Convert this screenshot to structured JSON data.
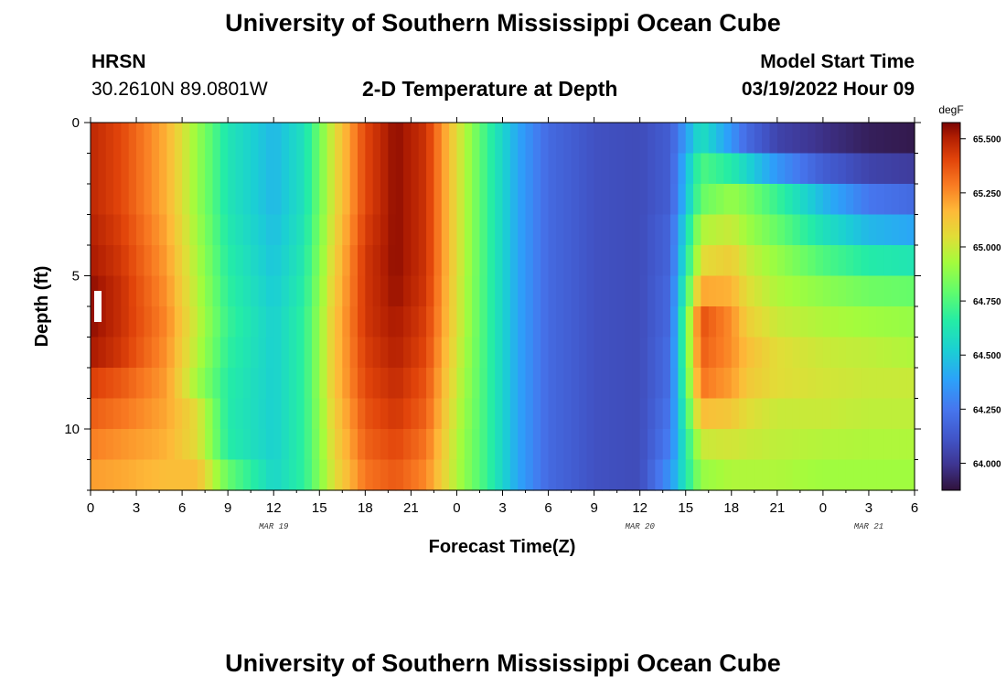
{
  "page": {
    "title": "University of Southern Mississippi Ocean Cube",
    "footer_title": "University of Southern Mississippi Ocean Cube"
  },
  "header": {
    "station": "HRSN",
    "coords": "30.2610N  89.0801W",
    "subtitle": "2-D Temperature at Depth",
    "model_label": "Model Start Time",
    "model_time": "03/19/2022 Hour 09"
  },
  "chart_data": {
    "type": "heatmap",
    "title": "2-D Temperature at Depth",
    "xlabel": "Forecast Time(Z)",
    "ylabel": "Depth (ft)",
    "x_ticks": [
      "0",
      "3",
      "6",
      "9",
      "12",
      "15",
      "18",
      "21",
      "0",
      "3",
      "6",
      "9",
      "12",
      "15",
      "18",
      "21",
      "0",
      "3",
      "6"
    ],
    "x_range_hours": [
      0,
      54
    ],
    "date_labels": [
      {
        "text": "MAR 19",
        "hour": 12
      },
      {
        "text": "MAR 20",
        "hour": 36
      },
      {
        "text": "MAR 21",
        "hour": 51
      }
    ],
    "y_ticks": [
      "0",
      "5",
      "10"
    ],
    "y_range_ft": [
      0,
      12
    ],
    "colorbar": {
      "unit": "degF",
      "range": [
        63.875,
        65.575
      ],
      "ticks": [
        "64.000",
        "64.250",
        "64.500",
        "64.750",
        "65.000",
        "65.250",
        "65.500"
      ]
    },
    "hour_keypoints": [
      0,
      2,
      5,
      7,
      9,
      12,
      14,
      16,
      18,
      20,
      22,
      24,
      26,
      28,
      30,
      33,
      36,
      38,
      40,
      42,
      43,
      45,
      48,
      51,
      54
    ],
    "rows": [
      {
        "depth_ft": 0.5,
        "values": [
          65.48,
          65.4,
          65.18,
          64.9,
          64.62,
          64.45,
          64.6,
          65.05,
          65.4,
          65.55,
          65.45,
          65.05,
          64.7,
          64.4,
          64.2,
          64.1,
          64.08,
          64.15,
          64.6,
          64.35,
          64.2,
          64.05,
          63.98,
          63.92,
          63.9
        ]
      },
      {
        "depth_ft": 1.5,
        "values": [
          65.48,
          65.4,
          65.18,
          64.9,
          64.62,
          64.45,
          64.6,
          65.05,
          65.4,
          65.55,
          65.45,
          65.05,
          64.7,
          64.4,
          64.2,
          64.1,
          64.08,
          64.15,
          64.75,
          64.65,
          64.55,
          64.35,
          64.15,
          64.05,
          64.02
        ]
      },
      {
        "depth_ft": 2.5,
        "values": [
          65.48,
          65.4,
          65.18,
          64.9,
          64.62,
          64.45,
          64.6,
          65.05,
          65.4,
          65.55,
          65.45,
          65.05,
          64.7,
          64.4,
          64.2,
          64.1,
          64.08,
          64.15,
          64.8,
          64.9,
          64.85,
          64.7,
          64.45,
          64.25,
          64.2
        ]
      },
      {
        "depth_ft": 3.5,
        "values": [
          65.5,
          65.42,
          65.2,
          64.92,
          64.64,
          64.47,
          64.62,
          65.07,
          65.42,
          65.55,
          65.45,
          65.05,
          64.7,
          64.4,
          64.2,
          64.1,
          64.08,
          64.18,
          64.95,
          65.0,
          64.92,
          64.8,
          64.6,
          64.45,
          64.4
        ]
      },
      {
        "depth_ft": 4.5,
        "values": [
          65.52,
          65.44,
          65.22,
          64.94,
          64.66,
          64.49,
          64.64,
          65.09,
          65.44,
          65.55,
          65.45,
          65.05,
          64.7,
          64.4,
          64.2,
          64.1,
          64.08,
          64.18,
          65.05,
          65.1,
          65.0,
          64.9,
          64.75,
          64.65,
          64.62
        ]
      },
      {
        "depth_ft": 5.5,
        "values": [
          65.55,
          65.46,
          65.24,
          64.96,
          64.68,
          64.51,
          64.66,
          65.11,
          65.44,
          65.54,
          65.44,
          65.04,
          64.7,
          64.4,
          64.2,
          64.1,
          64.08,
          64.2,
          65.2,
          65.18,
          65.05,
          64.95,
          64.88,
          64.82,
          64.8
        ]
      },
      {
        "depth_ft": 6.5,
        "values": [
          65.55,
          65.46,
          65.26,
          64.98,
          64.7,
          64.53,
          64.68,
          65.13,
          65.44,
          65.52,
          65.42,
          65.04,
          64.7,
          64.4,
          64.2,
          64.1,
          64.08,
          64.2,
          65.38,
          65.25,
          65.1,
          65.0,
          64.95,
          64.92,
          64.9
        ]
      },
      {
        "depth_ft": 7.5,
        "values": [
          65.52,
          65.44,
          65.24,
          64.96,
          64.68,
          64.53,
          64.68,
          65.13,
          65.42,
          65.5,
          65.4,
          65.02,
          64.7,
          64.4,
          64.2,
          64.1,
          64.08,
          64.22,
          65.35,
          65.25,
          65.15,
          65.05,
          65.0,
          64.98,
          64.95
        ]
      },
      {
        "depth_ft": 8.5,
        "values": [
          65.42,
          65.36,
          65.22,
          64.92,
          64.66,
          64.53,
          64.68,
          65.13,
          65.4,
          65.47,
          65.37,
          65.0,
          64.7,
          64.4,
          64.2,
          64.1,
          64.08,
          64.22,
          65.3,
          65.22,
          65.12,
          65.05,
          65.02,
          65.0,
          65.0
        ]
      },
      {
        "depth_ft": 9.5,
        "values": [
          65.35,
          65.3,
          65.2,
          65.05,
          64.65,
          64.53,
          64.68,
          65.1,
          65.37,
          65.44,
          65.34,
          64.98,
          64.7,
          64.4,
          64.2,
          64.1,
          64.08,
          64.25,
          65.15,
          65.12,
          65.05,
          65.0,
          65.0,
          64.98,
          64.98
        ]
      },
      {
        "depth_ft": 10.5,
        "values": [
          65.28,
          65.24,
          65.18,
          65.05,
          64.66,
          64.53,
          64.68,
          65.08,
          65.34,
          65.4,
          65.3,
          64.96,
          64.7,
          64.4,
          64.2,
          64.1,
          64.08,
          64.28,
          65.0,
          65.02,
          65.0,
          64.98,
          64.96,
          64.95,
          64.95
        ]
      },
      {
        "depth_ft": 11.5,
        "values": [
          65.22,
          65.2,
          65.15,
          65.15,
          64.8,
          64.55,
          64.68,
          65.05,
          65.3,
          65.36,
          65.26,
          64.95,
          64.7,
          64.4,
          64.2,
          64.1,
          64.08,
          64.35,
          64.9,
          64.95,
          64.95,
          64.95,
          64.92,
          64.92,
          64.92
        ]
      }
    ]
  }
}
